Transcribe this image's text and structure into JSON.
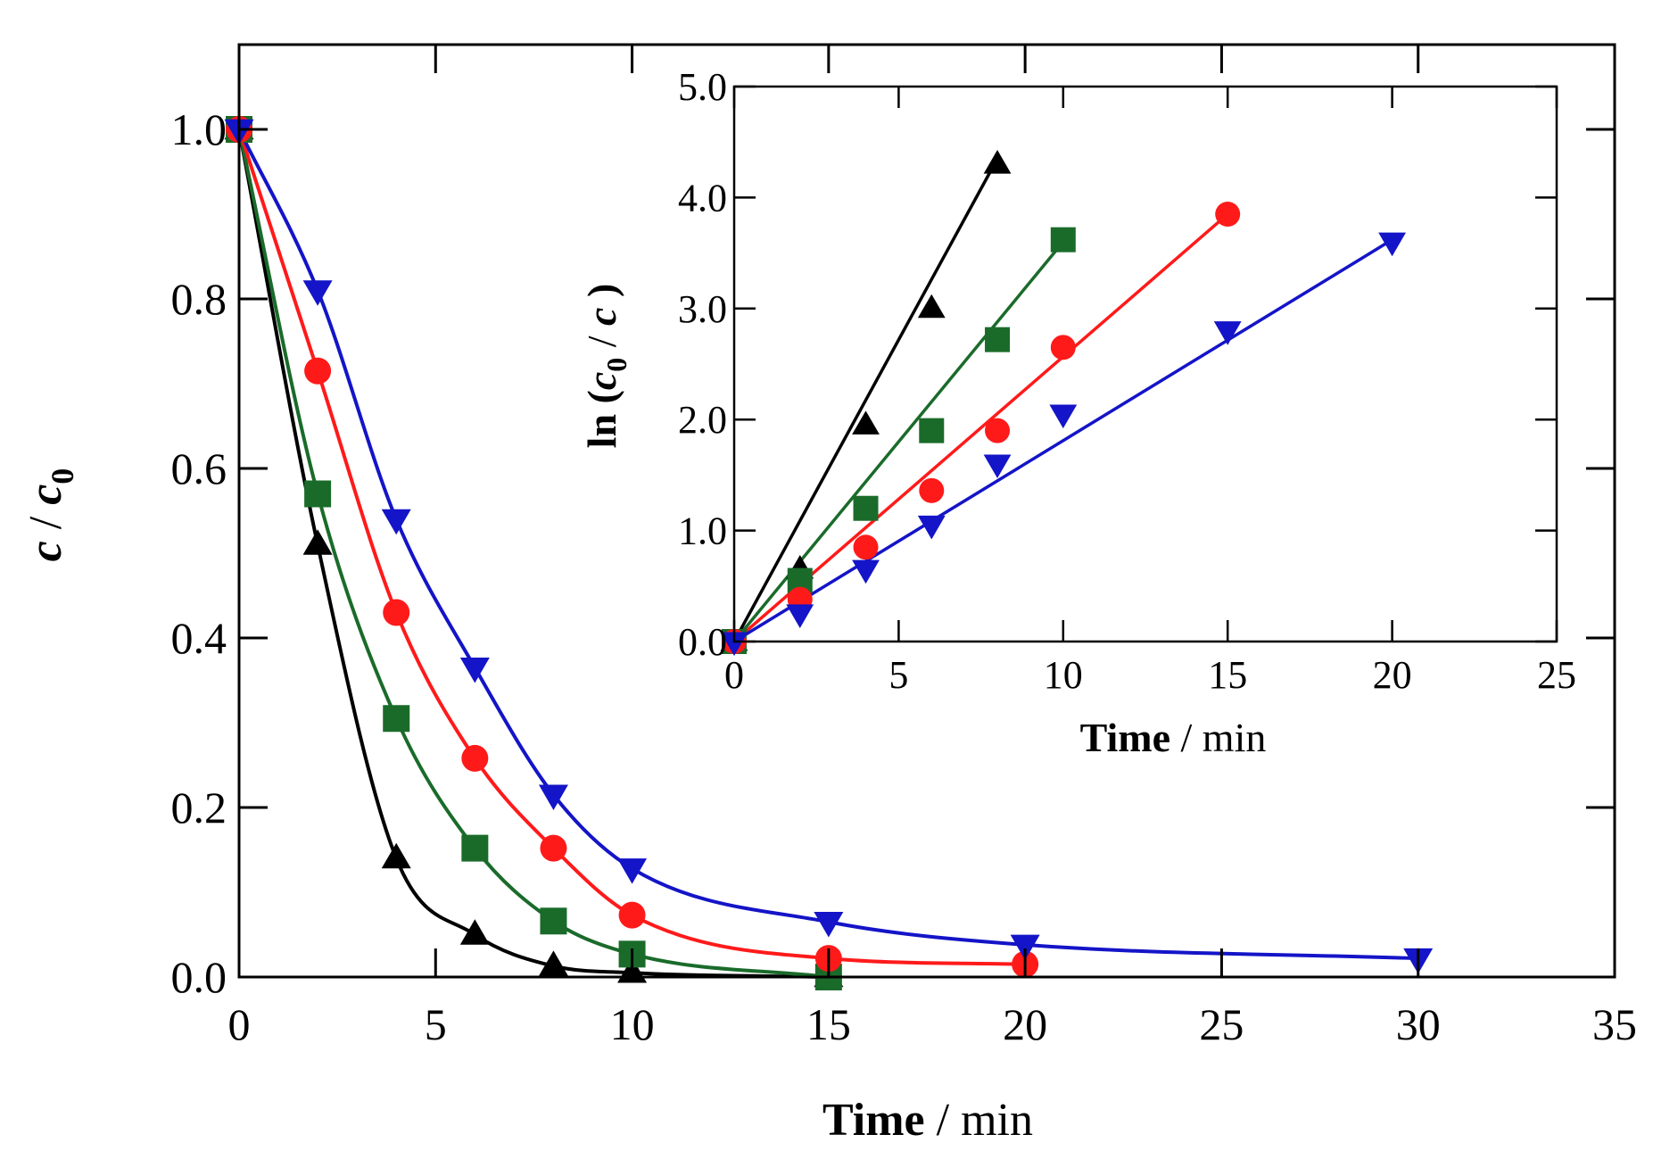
{
  "chart_data": [
    {
      "type": "line",
      "panel": "main",
      "xlabel": {
        "bold": "Time",
        "rest": " / min"
      },
      "ylabel": {
        "c": "c",
        "slash": " / ",
        "c0": "c",
        "sub": "0"
      },
      "xlim": [
        0,
        35
      ],
      "ylim": [
        0,
        1.1
      ],
      "xticks": [
        0,
        5,
        10,
        15,
        20,
        25,
        30,
        35
      ],
      "xtick_labels": [
        "0",
        "5",
        "10",
        "15",
        "20",
        "25",
        "30",
        "35"
      ],
      "yticks": [
        0,
        0.2,
        0.4,
        0.6,
        0.8,
        1.0
      ],
      "ytick_labels": [
        "0.0",
        "0.2",
        "0.4",
        "0.6",
        "0.8",
        "1.0"
      ],
      "series": [
        {
          "name": "black-triangle-up",
          "color": "#000000",
          "marker": "triangle-up",
          "x": [
            0,
            2,
            4,
            6,
            8,
            10,
            15
          ],
          "y": [
            1.0,
            0.51,
            0.14,
            0.05,
            0.013,
            0.005,
            0.0
          ]
        },
        {
          "name": "green-square",
          "color": "#1a6b2a",
          "marker": "square",
          "x": [
            0,
            2,
            4,
            6,
            8,
            10,
            15
          ],
          "y": [
            1.0,
            0.57,
            0.305,
            0.152,
            0.066,
            0.027,
            0.0
          ]
        },
        {
          "name": "red-circle",
          "color": "#ff1a1a",
          "marker": "circle",
          "x": [
            0,
            2,
            4,
            6,
            8,
            10,
            15,
            20
          ],
          "y": [
            1.0,
            0.715,
            0.43,
            0.258,
            0.152,
            0.073,
            0.022,
            0.015
          ]
        },
        {
          "name": "blue-triangle-down",
          "color": "#1414c8",
          "marker": "triangle-down",
          "x": [
            0,
            2,
            4,
            6,
            8,
            10,
            15,
            20,
            30
          ],
          "y": [
            1.0,
            0.81,
            0.54,
            0.365,
            0.215,
            0.128,
            0.065,
            0.038,
            0.022
          ]
        }
      ]
    },
    {
      "type": "line",
      "panel": "inset",
      "xlabel": {
        "bold": "Time",
        "rest": " / min"
      },
      "ylabel": {
        "pre": "ln (",
        "c0": "c",
        "sub": "0",
        "mid": " / ",
        "c": "c",
        "post": " )"
      },
      "xlim": [
        0,
        25
      ],
      "ylim": [
        0,
        5.0
      ],
      "xticks": [
        0,
        5,
        10,
        15,
        20,
        25
      ],
      "xtick_labels": [
        "0",
        "5",
        "10",
        "15",
        "20",
        "25"
      ],
      "yticks": [
        0,
        1,
        2,
        3,
        4,
        5
      ],
      "ytick_labels": [
        "0.0",
        "1.0",
        "2.0",
        "3.0",
        "4.0",
        "5.0"
      ],
      "series": [
        {
          "name": "black-triangle-up",
          "color": "#000000",
          "marker": "triangle-up",
          "x": [
            0,
            2,
            4,
            6,
            8
          ],
          "y": [
            0.0,
            0.65,
            1.95,
            3.0,
            4.3
          ],
          "fit": {
            "x": [
              0,
              8
            ],
            "y": [
              0.0,
              4.35
            ]
          }
        },
        {
          "name": "green-square",
          "color": "#1a6b2a",
          "marker": "square",
          "x": [
            0,
            2,
            4,
            6,
            8,
            10
          ],
          "y": [
            0.0,
            0.55,
            1.2,
            1.9,
            2.72,
            3.62
          ],
          "fit": {
            "x": [
              0,
              10
            ],
            "y": [
              0.0,
              3.6
            ]
          }
        },
        {
          "name": "red-circle",
          "color": "#ff1a1a",
          "marker": "circle",
          "x": [
            0,
            2,
            4,
            6,
            8,
            10,
            15
          ],
          "y": [
            0.0,
            0.38,
            0.85,
            1.36,
            1.9,
            2.65,
            3.85
          ],
          "fit": {
            "x": [
              0,
              15
            ],
            "y": [
              0.0,
              3.85
            ]
          }
        },
        {
          "name": "blue-triangle-down",
          "color": "#1414c8",
          "marker": "triangle-down",
          "x": [
            0,
            2,
            4,
            6,
            8,
            10,
            15,
            20
          ],
          "y": [
            0.0,
            0.25,
            0.65,
            1.05,
            1.6,
            2.05,
            2.8,
            3.6
          ],
          "fit": {
            "x": [
              0,
              20
            ],
            "y": [
              0.0,
              3.62
            ]
          }
        }
      ]
    }
  ]
}
